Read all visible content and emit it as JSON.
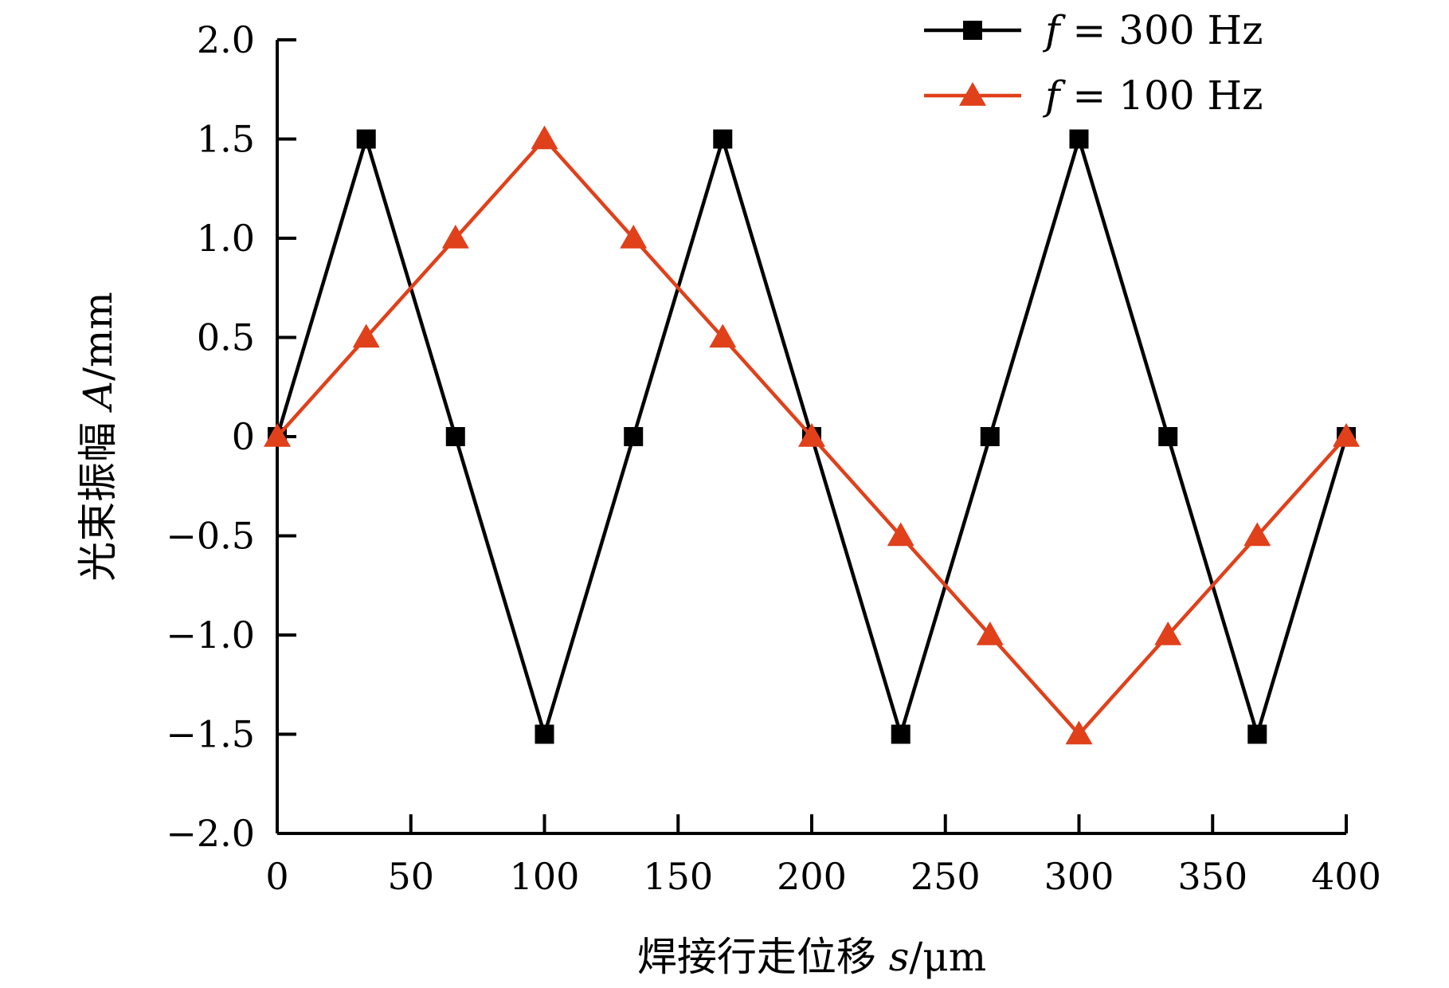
{
  "chart_data": {
    "type": "line",
    "xlabel_prefix": "焊接行走位移 ",
    "xlabel_var": "s",
    "xlabel_unit": "/μm",
    "ylabel_prefix": "光束振幅 ",
    "ylabel_var": "A",
    "ylabel_unit": "/mm",
    "xlim": [
      0,
      400
    ],
    "ylim": [
      -2.0,
      2.0
    ],
    "xticks": [
      0,
      50,
      100,
      150,
      200,
      250,
      300,
      350,
      400
    ],
    "xtick_labels": [
      "0",
      "50",
      "100",
      "150",
      "200",
      "250",
      "300",
      "350",
      "400"
    ],
    "yticks": [
      2.0,
      1.5,
      1.0,
      0.5,
      0,
      -0.5,
      -1.0,
      -1.5,
      -2.0
    ],
    "ytick_labels": [
      "2.0",
      "1.5",
      "1.0",
      "0.5",
      "0",
      "−0.5",
      "−1.0",
      "−1.5",
      "−2.0"
    ],
    "grid": false,
    "legend_position": "top-right",
    "series": [
      {
        "name_var": "f",
        "name_rest": " = 300 Hz",
        "color": "#000000",
        "marker": "square",
        "x": [
          0,
          33.3,
          66.7,
          100,
          133.3,
          166.7,
          200,
          233.3,
          266.7,
          300,
          333.3,
          366.7,
          400
        ],
        "values": [
          0,
          1.5,
          0,
          -1.5,
          0,
          1.5,
          0,
          -1.5,
          0,
          1.5,
          0,
          -1.5,
          0
        ]
      },
      {
        "name_var": "f",
        "name_rest": " = 100 Hz",
        "color": "#e0401a",
        "marker": "triangle",
        "x": [
          0,
          33.3,
          66.7,
          100,
          133.3,
          166.7,
          200,
          233.3,
          266.7,
          300,
          333.3,
          366.7,
          400
        ],
        "values": [
          0,
          0.5,
          1.0,
          1.5,
          1.0,
          0.5,
          0,
          -0.5,
          -1.0,
          -1.5,
          -1.0,
          -0.5,
          0
        ]
      }
    ]
  }
}
